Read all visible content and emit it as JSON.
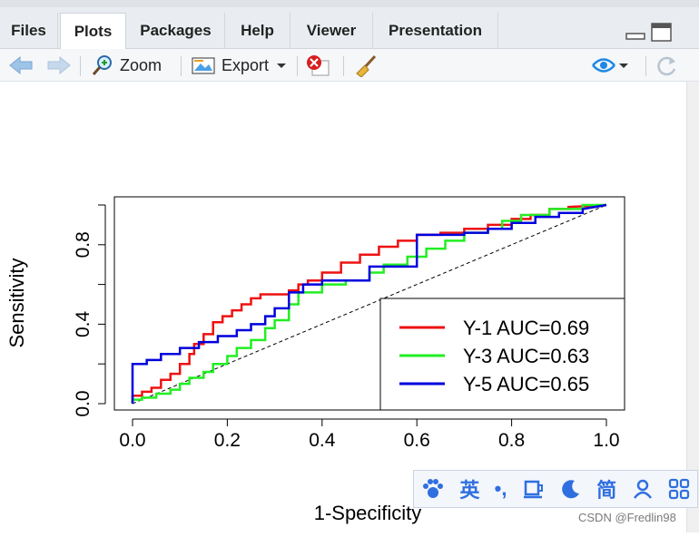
{
  "tabs": [
    {
      "label": "Files"
    },
    {
      "label": "Plots"
    },
    {
      "label": "Packages"
    },
    {
      "label": "Help"
    },
    {
      "label": "Viewer"
    },
    {
      "label": "Presentation"
    }
  ],
  "toolbar": {
    "zoom_label": "Zoom",
    "export_label": "Export"
  },
  "colors": {
    "y1": "#ee1111",
    "y3": "#22ee22",
    "y5": "#0000dd"
  },
  "chart_data": {
    "type": "line",
    "xlabel": "1-Specificity",
    "ylabel": "Sensitivity",
    "xlim": [
      0,
      1
    ],
    "ylim": [
      0,
      1
    ],
    "x_ticks": [
      "0.0",
      "0.2",
      "0.4",
      "0.6",
      "0.8",
      "1.0"
    ],
    "y_ticks": [
      "0.0",
      "0.4",
      "0.8"
    ],
    "diagonal_reference": true,
    "legend_position": "bottom-right",
    "series": [
      {
        "name": "Y-1 AUC=0.69",
        "color": "#ee1111",
        "x": [
          0,
          0,
          0.02,
          0.02,
          0.04,
          0.04,
          0.06,
          0.06,
          0.08,
          0.08,
          0.1,
          0.1,
          0.12,
          0.12,
          0.13,
          0.13,
          0.15,
          0.15,
          0.17,
          0.17,
          0.19,
          0.19,
          0.21,
          0.21,
          0.23,
          0.23,
          0.25,
          0.25,
          0.27,
          0.27,
          0.33,
          0.33,
          0.35,
          0.35,
          0.37,
          0.37,
          0.4,
          0.4,
          0.44,
          0.44,
          0.48,
          0.48,
          0.52,
          0.52,
          0.56,
          0.56,
          0.6,
          0.6,
          0.65,
          0.65,
          0.7,
          0.7,
          0.75,
          0.75,
          0.8,
          0.8,
          0.84,
          0.84,
          0.88,
          0.88,
          0.92,
          0.92,
          1.0
        ],
        "y": [
          0,
          0.04,
          0.04,
          0.06,
          0.06,
          0.08,
          0.08,
          0.12,
          0.12,
          0.15,
          0.15,
          0.2,
          0.2,
          0.25,
          0.25,
          0.3,
          0.3,
          0.35,
          0.35,
          0.41,
          0.41,
          0.44,
          0.44,
          0.47,
          0.47,
          0.5,
          0.5,
          0.53,
          0.53,
          0.55,
          0.55,
          0.57,
          0.57,
          0.6,
          0.6,
          0.62,
          0.62,
          0.66,
          0.66,
          0.71,
          0.71,
          0.75,
          0.75,
          0.79,
          0.79,
          0.82,
          0.82,
          0.85,
          0.85,
          0.86,
          0.86,
          0.88,
          0.88,
          0.9,
          0.9,
          0.93,
          0.93,
          0.95,
          0.95,
          0.98,
          0.98,
          0.99,
          1.0
        ]
      },
      {
        "name": "Y-3 AUC=0.63",
        "color": "#22ee22",
        "x": [
          0,
          0,
          0.02,
          0.02,
          0.05,
          0.05,
          0.08,
          0.08,
          0.1,
          0.1,
          0.12,
          0.12,
          0.15,
          0.15,
          0.17,
          0.17,
          0.2,
          0.2,
          0.22,
          0.22,
          0.25,
          0.25,
          0.28,
          0.28,
          0.3,
          0.3,
          0.33,
          0.33,
          0.35,
          0.35,
          0.4,
          0.4,
          0.45,
          0.45,
          0.5,
          0.5,
          0.53,
          0.53,
          0.58,
          0.58,
          0.62,
          0.62,
          0.66,
          0.66,
          0.7,
          0.7,
          0.75,
          0.75,
          0.78,
          0.78,
          0.82,
          0.82,
          0.88,
          0.88,
          0.95,
          0.95,
          1.0
        ],
        "y": [
          0,
          0.02,
          0.02,
          0.03,
          0.03,
          0.05,
          0.05,
          0.07,
          0.07,
          0.1,
          0.1,
          0.13,
          0.13,
          0.16,
          0.16,
          0.2,
          0.2,
          0.24,
          0.24,
          0.28,
          0.28,
          0.32,
          0.32,
          0.38,
          0.38,
          0.42,
          0.42,
          0.5,
          0.5,
          0.56,
          0.56,
          0.6,
          0.6,
          0.62,
          0.62,
          0.66,
          0.66,
          0.7,
          0.7,
          0.74,
          0.74,
          0.78,
          0.78,
          0.82,
          0.82,
          0.86,
          0.86,
          0.88,
          0.88,
          0.92,
          0.92,
          0.95,
          0.95,
          0.98,
          0.98,
          1.0,
          1.0
        ]
      },
      {
        "name": "Y-5 AUC=0.65",
        "color": "#0000dd",
        "x": [
          0,
          0,
          0.03,
          0.03,
          0.06,
          0.06,
          0.1,
          0.1,
          0.14,
          0.14,
          0.18,
          0.18,
          0.22,
          0.22,
          0.25,
          0.25,
          0.28,
          0.28,
          0.3,
          0.3,
          0.33,
          0.33,
          0.36,
          0.36,
          0.4,
          0.4,
          0.5,
          0.5,
          0.6,
          0.6,
          0.7,
          0.7,
          0.75,
          0.75,
          0.8,
          0.8,
          0.85,
          0.85,
          0.9,
          0.9,
          0.95,
          0.95,
          1.0
        ],
        "y": [
          0,
          0.2,
          0.2,
          0.22,
          0.22,
          0.25,
          0.25,
          0.28,
          0.28,
          0.31,
          0.31,
          0.34,
          0.34,
          0.37,
          0.37,
          0.4,
          0.4,
          0.44,
          0.44,
          0.48,
          0.48,
          0.56,
          0.56,
          0.6,
          0.6,
          0.62,
          0.62,
          0.69,
          0.69,
          0.85,
          0.85,
          0.86,
          0.86,
          0.88,
          0.88,
          0.91,
          0.91,
          0.94,
          0.94,
          0.96,
          0.96,
          0.98,
          1.0
        ]
      }
    ]
  },
  "ime_toolbar": {
    "lang_label": "英",
    "punct_label": "•,",
    "simplified_label": "简"
  },
  "watermark": "CSDN @Fredlin98"
}
